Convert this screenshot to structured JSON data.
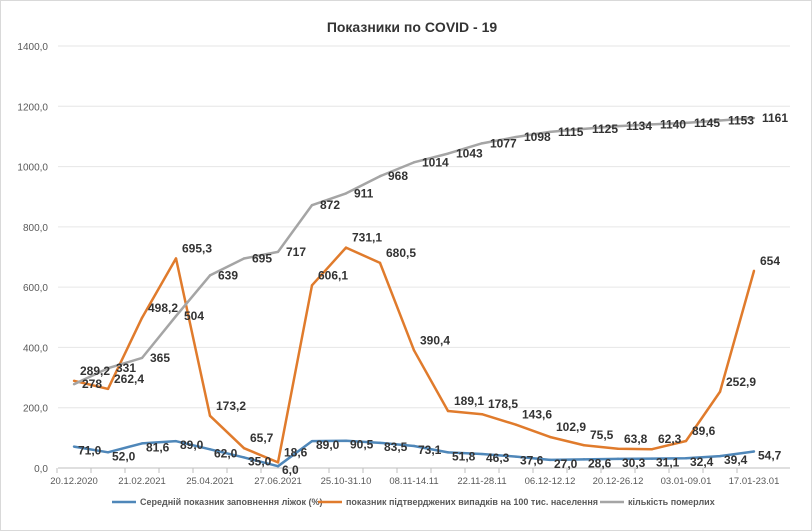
{
  "chart_data": {
    "type": "line",
    "title": "Показники по COVID - 19",
    "xlabel": "",
    "ylabel": "",
    "ylim": [
      0,
      1400
    ],
    "yticks": [
      "0,0",
      "200,0",
      "400,0",
      "600,0",
      "800,0",
      "1000,0",
      "1200,0",
      "1400,0"
    ],
    "grid": true,
    "legend_position": "bottom",
    "x_tick_labels": [
      "20.12.2020",
      "",
      "21.02.2021",
      "",
      "25.04.2021",
      "",
      "27.06.2021",
      "",
      "25.10-31.10",
      "",
      "08.11-14.11",
      "",
      "22.11-28.11",
      "",
      "06.12-12.12",
      "",
      "20.12-26.12",
      "",
      "03.01-09.01",
      "",
      "17.01-23.01"
    ],
    "series": [
      {
        "name": "Середній показник заповнення ліжок (%)",
        "color": "#4f87b9",
        "values": [
          71.0,
          52.0,
          81.6,
          89.0,
          62.0,
          35.0,
          6.0,
          89.0,
          90.5,
          83.5,
          73.1,
          51.8,
          46.3,
          37.6,
          27.0,
          28.6,
          30.3,
          31.1,
          32.4,
          39.4,
          54.7
        ],
        "labels": [
          "71,0",
          "52,0",
          "81,6",
          "89,0",
          "62,0",
          "35,0",
          "6,0",
          "89,0",
          "90,5",
          "83,5",
          "73,1",
          "51,8",
          "46,3",
          "37,6",
          "27,0",
          "28,6",
          "30,3",
          "31,1",
          "32,4",
          "39,4",
          "54,7"
        ]
      },
      {
        "name": "показник підтверджених випадків на 100 тис. населення",
        "color": "#e07b2c",
        "values": [
          289.2,
          262.4,
          498.2,
          695.3,
          173.2,
          65.7,
          18.6,
          606.1,
          731.1,
          680.5,
          390.4,
          189.1,
          178.5,
          143.6,
          102.9,
          75.5,
          63.8,
          62.3,
          89.6,
          252.9,
          654
        ],
        "labels": [
          "289,2",
          "262,4",
          "498,2",
          "695,3",
          "173,2",
          "65,7",
          "18,6",
          "606,1",
          "731,1",
          "680,5",
          "390,4",
          "189,1",
          "178,5",
          "143,6",
          "102,9",
          "75,5",
          "63,8",
          "62,3",
          "89,6",
          "252,9",
          "654"
        ]
      },
      {
        "name": "кількість померлих",
        "color": "#a5a5a5",
        "values": [
          278,
          331,
          365,
          504,
          639,
          695,
          717,
          872,
          911,
          968,
          1014,
          1043,
          1077,
          1098,
          1115,
          1125,
          1134,
          1140,
          1145,
          1153,
          1161
        ],
        "labels": [
          "278",
          "331",
          "365",
          "504",
          "639",
          "695",
          "717",
          "872",
          "911",
          "968",
          "1014",
          "1043",
          "1077",
          "1098",
          "1115",
          "1125",
          "1134",
          "1140",
          "1145",
          "1153",
          "1161"
        ]
      }
    ]
  }
}
